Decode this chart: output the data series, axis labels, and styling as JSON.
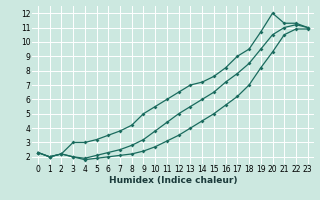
{
  "xlabel": "Humidex (Indice chaleur)",
  "bg_color": "#cce8e0",
  "grid_color": "#ffffff",
  "line_color": "#1a6b5e",
  "x_min": -0.5,
  "x_max": 23.5,
  "y_min": 1.5,
  "y_max": 12.5,
  "x_ticks": [
    0,
    1,
    2,
    3,
    4,
    5,
    6,
    7,
    8,
    9,
    10,
    11,
    12,
    13,
    14,
    15,
    16,
    17,
    18,
    19,
    20,
    21,
    22,
    23
  ],
  "y_ticks": [
    2,
    3,
    4,
    5,
    6,
    7,
    8,
    9,
    10,
    11,
    12
  ],
  "curve_upper_x": [
    0,
    1,
    2,
    3,
    4,
    5,
    6,
    7,
    8,
    9,
    10,
    11,
    12,
    13,
    14,
    15,
    16,
    17,
    18,
    19,
    20,
    21,
    22,
    23
  ],
  "curve_upper_y": [
    2.3,
    2.0,
    2.2,
    3.0,
    3.0,
    3.2,
    3.5,
    3.8,
    4.2,
    5.0,
    5.5,
    6.0,
    6.5,
    7.0,
    7.2,
    7.6,
    8.2,
    9.0,
    9.5,
    10.7,
    12.0,
    11.3,
    11.3,
    11.0
  ],
  "curve_lower_x": [
    0,
    1,
    2,
    3,
    4,
    5,
    6,
    7,
    8,
    9,
    10,
    11,
    12,
    13,
    14,
    15,
    16,
    17,
    18,
    19,
    20,
    21,
    22,
    23
  ],
  "curve_lower_y": [
    2.3,
    2.0,
    2.2,
    2.0,
    1.8,
    1.9,
    2.0,
    2.1,
    2.2,
    2.4,
    2.7,
    3.1,
    3.5,
    4.0,
    4.5,
    5.0,
    5.6,
    6.2,
    7.0,
    8.2,
    9.3,
    10.5,
    10.9,
    10.9
  ],
  "curve_mean_x": [
    0,
    1,
    2,
    3,
    4,
    5,
    6,
    7,
    8,
    9,
    10,
    11,
    12,
    13,
    14,
    15,
    16,
    17,
    18,
    19,
    20,
    21,
    22,
    23
  ],
  "curve_mean_y": [
    2.3,
    2.0,
    2.2,
    2.0,
    1.9,
    2.1,
    2.3,
    2.5,
    2.8,
    3.2,
    3.8,
    4.4,
    5.0,
    5.5,
    6.0,
    6.5,
    7.2,
    7.8,
    8.5,
    9.5,
    10.5,
    11.0,
    11.2,
    11.0
  ]
}
